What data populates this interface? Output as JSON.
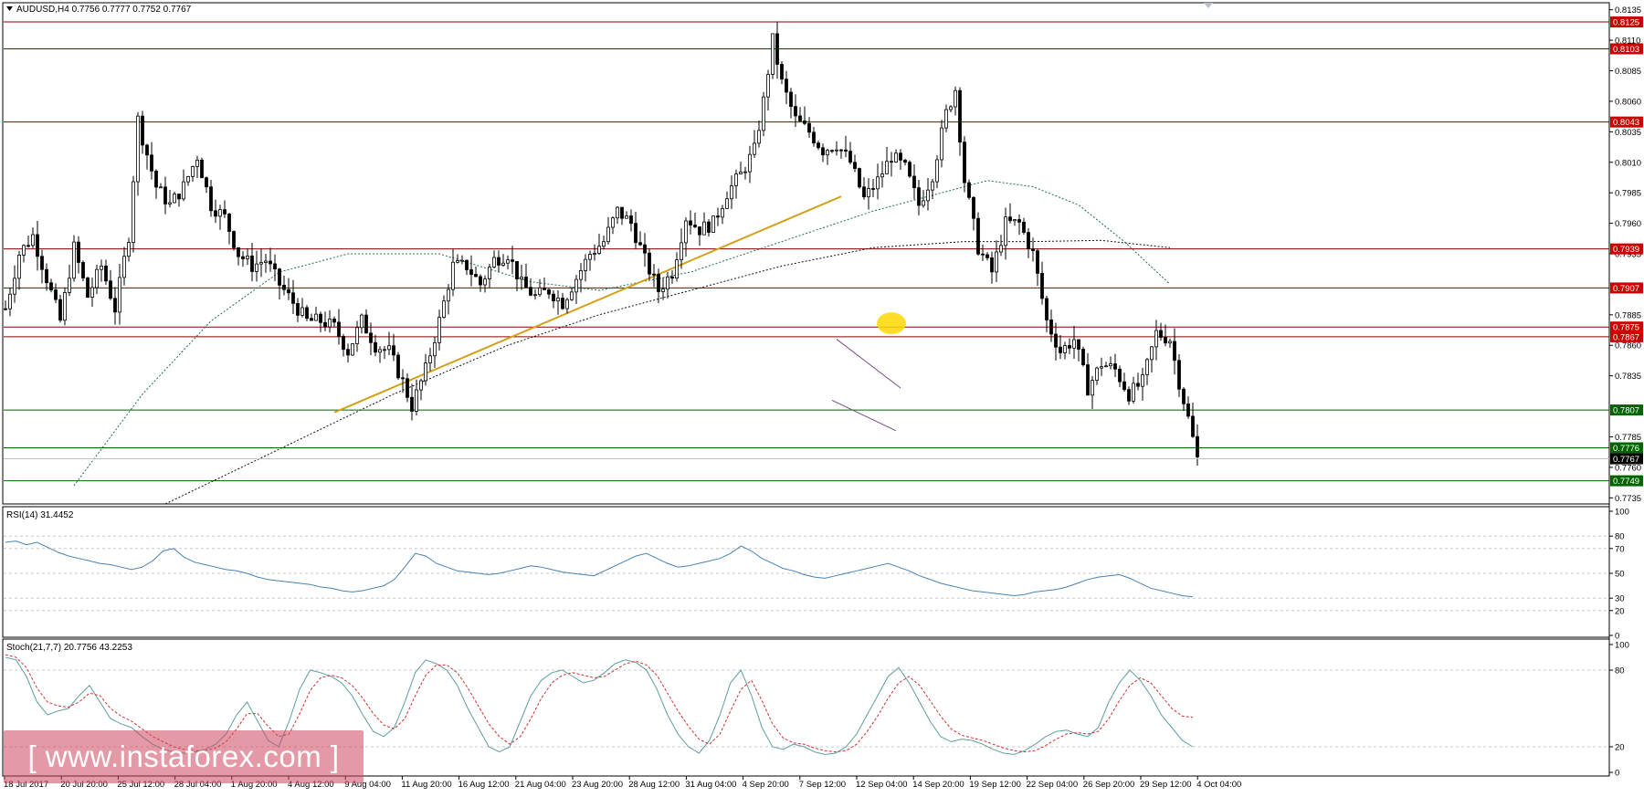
{
  "main_header": "AUDUSD,H4  0.7756 0.7777 0.7752 0.7767",
  "rsi_header": "RSI(14) 31.4452",
  "stoch_header": "Stoch(21,7,7) 20.7756 43.2253",
  "watermark": "[ www.instaforex.com ]",
  "colors": {
    "candle": "#000000",
    "resistance_line": "#8b0000",
    "support_line": "#006400",
    "trendline": "#d4a017",
    "channel": "#7b4a8a",
    "ma_fast": "#1e6b63",
    "ma_slow": "#111111",
    "rsi_line": "#4682b4",
    "stoch_main": "#5f9ea0",
    "stoch_signal": "#cd3333",
    "highlight": "#ffd700",
    "price_badge_red": "#cc0000",
    "price_badge_green": "#006400",
    "current_badge": "#000000"
  },
  "chart_data": [
    {
      "type": "candlestick",
      "symbol": "AUDUSD",
      "timeframe": "H4",
      "ohlc_last": {
        "open": 0.7756,
        "high": 0.7777,
        "low": 0.7752,
        "close": 0.7767
      },
      "ylim": [
        0.773,
        0.814
      ],
      "y_ticks": [
        "0.8135",
        "0.8110",
        "0.8085",
        "0.8060",
        "0.8035",
        "0.8010",
        "0.7985",
        "0.7960",
        "0.7935",
        "0.7885",
        "0.7860",
        "0.7835",
        "0.7785",
        "0.7760",
        "0.7735"
      ],
      "x_ticks": [
        "18 Jul 2017",
        "20 Jul 20:00",
        "25 Jul 12:00",
        "28 Jul 04:00",
        "1 Aug 20:00",
        "4 Aug 12:00",
        "9 Aug 04:00",
        "11 Aug 20:00",
        "16 Aug 12:00",
        "21 Aug 04:00",
        "23 Aug 20:00",
        "28 Aug 12:00",
        "31 Aug 04:00",
        "4 Sep 20:00",
        "7 Sep 12:00",
        "12 Sep 04:00",
        "14 Sep 20:00",
        "19 Sep 12:00",
        "22 Sep 04:00",
        "26 Sep 20:00",
        "29 Sep 12:00",
        "4 Oct 04:00"
      ],
      "levels": [
        {
          "value": 0.8125,
          "label": "0.8125",
          "kind": "resistance"
        },
        {
          "value": 0.8103,
          "label": "0.8103",
          "kind": "resistance"
        },
        {
          "value": 0.8043,
          "label": "0.8043",
          "kind": "resistance"
        },
        {
          "value": 0.7939,
          "label": "0.7939",
          "kind": "resistance"
        },
        {
          "value": 0.7907,
          "label": "0.7907",
          "kind": "resistance"
        },
        {
          "value": 0.7875,
          "label": "0.7875",
          "kind": "resistance"
        },
        {
          "value": 0.7867,
          "label": "0.7867",
          "kind": "resistance"
        },
        {
          "value": 0.7807,
          "label": "0.7807",
          "kind": "support"
        },
        {
          "value": 0.7776,
          "label": "0.7776",
          "kind": "support"
        },
        {
          "value": 0.7749,
          "label": "0.7749",
          "kind": "support"
        }
      ],
      "current_price": {
        "value": 0.7767,
        "label": "0.7767"
      },
      "price_path": [
        [
          0,
          0.789
        ],
        [
          3,
          0.7935
        ],
        [
          6,
          0.795
        ],
        [
          9,
          0.7915
        ],
        [
          12,
          0.788
        ],
        [
          15,
          0.794
        ],
        [
          18,
          0.79
        ],
        [
          21,
          0.7925
        ],
        [
          24,
          0.789
        ],
        [
          27,
          0.795
        ],
        [
          29,
          0.8045
        ],
        [
          30,
          0.803
        ],
        [
          33,
          0.799
        ],
        [
          36,
          0.7975
        ],
        [
          39,
          0.799
        ],
        [
          42,
          0.8015
        ],
        [
          45,
          0.7975
        ],
        [
          48,
          0.7965
        ],
        [
          51,
          0.7935
        ],
        [
          54,
          0.7925
        ],
        [
          57,
          0.793
        ],
        [
          60,
          0.791
        ],
        [
          63,
          0.7895
        ],
        [
          66,
          0.788
        ],
        [
          69,
          0.788
        ],
        [
          72,
          0.7875
        ],
        [
          75,
          0.7855
        ],
        [
          78,
          0.788
        ],
        [
          81,
          0.786
        ],
        [
          84,
          0.7855
        ],
        [
          87,
          0.783
        ],
        [
          89,
          0.781
        ],
        [
          92,
          0.784
        ],
        [
          95,
          0.788
        ],
        [
          98,
          0.7925
        ],
        [
          101,
          0.7925
        ],
        [
          104,
          0.791
        ],
        [
          107,
          0.793
        ],
        [
          110,
          0.7935
        ],
        [
          113,
          0.791
        ],
        [
          116,
          0.79
        ],
        [
          119,
          0.7905
        ],
        [
          122,
          0.7895
        ],
        [
          125,
          0.7915
        ],
        [
          128,
          0.7935
        ],
        [
          131,
          0.7945
        ],
        [
          134,
          0.797
        ],
        [
          137,
          0.796
        ],
        [
          140,
          0.793
        ],
        [
          143,
          0.7905
        ],
        [
          146,
          0.792
        ],
        [
          149,
          0.7965
        ],
        [
          152,
          0.7955
        ],
        [
          155,
          0.796
        ],
        [
          158,
          0.7985
        ],
        [
          161,
          0.8
        ],
        [
          164,
          0.802
        ],
        [
          166,
          0.806
        ],
        [
          168,
          0.811
        ],
        [
          170,
          0.8075
        ],
        [
          173,
          0.8045
        ],
        [
          176,
          0.8035
        ],
        [
          179,
          0.802
        ],
        [
          182,
          0.8025
        ],
        [
          185,
          0.801
        ],
        [
          188,
          0.798
        ],
        [
          191,
          0.7995
        ],
        [
          194,
          0.8015
        ],
        [
          197,
          0.8005
        ],
        [
          200,
          0.7975
        ],
        [
          203,
          0.8
        ],
        [
          206,
          0.805
        ],
        [
          208,
          0.807
        ],
        [
          210,
          0.7995
        ],
        [
          213,
          0.794
        ],
        [
          216,
          0.792
        ],
        [
          219,
          0.796
        ],
        [
          222,
          0.796
        ],
        [
          225,
          0.7935
        ],
        [
          228,
          0.788
        ],
        [
          231,
          0.7855
        ],
        [
          234,
          0.7865
        ],
        [
          237,
          0.7825
        ],
        [
          240,
          0.7845
        ],
        [
          243,
          0.784
        ],
        [
          246,
          0.782
        ],
        [
          249,
          0.783
        ],
        [
          252,
          0.787
        ],
        [
          255,
          0.7865
        ],
        [
          257,
          0.783
        ],
        [
          259,
          0.78
        ],
        [
          261,
          0.7767
        ]
      ],
      "moving_averages": [
        {
          "points": [
            [
              15,
              0.7745
            ],
            [
              30,
              0.782
            ],
            [
              45,
              0.788
            ],
            [
              60,
              0.792
            ],
            [
              75,
              0.7935
            ],
            [
              95,
              0.7935
            ],
            [
              115,
              0.7912
            ],
            [
              130,
              0.7905
            ],
            [
              150,
              0.792
            ],
            [
              170,
              0.7945
            ],
            [
              190,
              0.797
            ],
            [
              205,
              0.7985
            ],
            [
              215,
              0.7995
            ],
            [
              225,
              0.799
            ],
            [
              235,
              0.7975
            ],
            [
              245,
              0.7945
            ],
            [
              255,
              0.791
            ]
          ]
        },
        {
          "points": [
            [
              35,
              0.773
            ],
            [
              60,
              0.7775
            ],
            [
              85,
              0.782
            ],
            [
              110,
              0.786
            ],
            [
              130,
              0.7885
            ],
            [
              150,
              0.7905
            ],
            [
              170,
              0.7925
            ],
            [
              190,
              0.794
            ],
            [
              210,
              0.7945
            ],
            [
              225,
              0.7945
            ],
            [
              240,
              0.7946
            ],
            [
              255,
              0.794
            ]
          ]
        }
      ],
      "trendline": [
        [
          72,
          0.7805
        ],
        [
          183,
          0.7982
        ]
      ],
      "channel": {
        "upper": [
          [
            182,
            0.7865
          ],
          [
            196,
            0.7825
          ]
        ],
        "lower": [
          [
            181,
            0.7815
          ],
          [
            195,
            0.779
          ]
        ]
      },
      "highlight_point": [
        194,
        0.7878
      ]
    },
    {
      "type": "line",
      "indicator": "RSI(14)",
      "value": 31.4452,
      "ylim": [
        0,
        100
      ],
      "y_ticks": [
        "100",
        "80",
        "70",
        "50",
        "30",
        "20",
        "0"
      ],
      "levels": [
        80,
        70,
        50,
        30,
        20
      ],
      "values": [
        75,
        76,
        73,
        75,
        71,
        67,
        64,
        62,
        60,
        58,
        57,
        55,
        53,
        55,
        60,
        68,
        70,
        63,
        59,
        57,
        55,
        53,
        52,
        50,
        47,
        45,
        44,
        43,
        42,
        41,
        39,
        38,
        36,
        35,
        36,
        38,
        40,
        45,
        55,
        66,
        64,
        58,
        55,
        52,
        51,
        50,
        49,
        50,
        52,
        54,
        56,
        55,
        53,
        51,
        50,
        49,
        48,
        52,
        56,
        60,
        64,
        66,
        62,
        58,
        55,
        56,
        58,
        60,
        62,
        66,
        72,
        68,
        62,
        58,
        54,
        52,
        49,
        47,
        46,
        48,
        50,
        52,
        54,
        56,
        58,
        55,
        52,
        48,
        45,
        42,
        40,
        38,
        36,
        35,
        34,
        33,
        32,
        33,
        35,
        36,
        37,
        39,
        42,
        45,
        47,
        48,
        49,
        46,
        42,
        38,
        36,
        34,
        32,
        31
      ]
    },
    {
      "type": "line",
      "indicator": "Stoch(21,7,7)",
      "main": 20.7756,
      "signal": 43.2253,
      "ylim": [
        0,
        100
      ],
      "y_ticks": [
        "100",
        "80",
        "20",
        "0"
      ],
      "levels": [
        80,
        20
      ],
      "main_values": [
        90,
        88,
        75,
        55,
        45,
        48,
        50,
        60,
        68,
        55,
        42,
        38,
        35,
        28,
        22,
        18,
        16,
        15,
        16,
        18,
        22,
        30,
        45,
        55,
        40,
        25,
        20,
        40,
        65,
        80,
        78,
        75,
        70,
        60,
        45,
        32,
        28,
        35,
        55,
        78,
        88,
        85,
        80,
        68,
        50,
        35,
        20,
        16,
        20,
        40,
        60,
        72,
        78,
        80,
        75,
        70,
        72,
        78,
        85,
        88,
        86,
        80,
        65,
        45,
        30,
        20,
        15,
        25,
        45,
        70,
        80,
        60,
        35,
        20,
        18,
        22,
        20,
        16,
        14,
        15,
        20,
        30,
        45,
        60,
        75,
        82,
        70,
        55,
        40,
        28,
        24,
        26,
        25,
        22,
        18,
        15,
        14,
        17,
        22,
        28,
        32,
        33,
        30,
        28,
        35,
        55,
        70,
        80,
        72,
        60,
        45,
        35,
        25,
        20
      ],
      "signal_values": [
        92,
        90,
        82,
        66,
        55,
        52,
        51,
        55,
        62,
        60,
        50,
        44,
        40,
        34,
        28,
        24,
        20,
        18,
        17,
        17,
        19,
        24,
        34,
        46,
        46,
        36,
        28,
        30,
        46,
        64,
        74,
        76,
        74,
        68,
        58,
        46,
        37,
        34,
        42,
        60,
        76,
        84,
        84,
        78,
        66,
        52,
        38,
        28,
        22,
        28,
        42,
        58,
        70,
        76,
        78,
        76,
        74,
        75,
        80,
        85,
        87,
        84,
        76,
        62,
        48,
        36,
        26,
        22,
        30,
        48,
        65,
        72,
        56,
        38,
        27,
        23,
        22,
        19,
        17,
        16,
        17,
        22,
        32,
        44,
        58,
        70,
        75,
        68,
        56,
        44,
        34,
        29,
        27,
        25,
        22,
        19,
        17,
        16,
        17,
        21,
        26,
        30,
        31,
        30,
        32,
        42,
        56,
        68,
        74,
        70,
        60,
        50,
        44,
        43
      ]
    }
  ]
}
